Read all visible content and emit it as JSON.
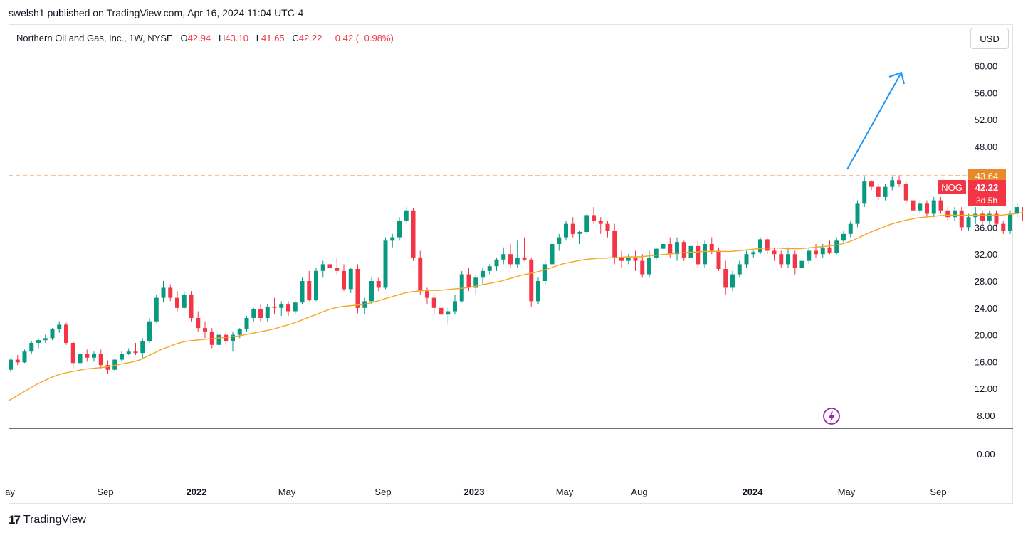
{
  "header": {
    "published": "swelsh1 published on TradingView.com, Apr 16, 2024 11:04 UTC-4"
  },
  "legend": {
    "symbol": "Northern Oil and Gas, Inc., 1W, NYSE",
    "o_label": "O",
    "o_value": "42.94",
    "h_label": "H",
    "h_value": "43.10",
    "l_label": "L",
    "l_value": "41.65",
    "c_label": "C",
    "c_value": "42.22",
    "change": "−0.42 (−0.98%)"
  },
  "currency_button": "USD",
  "price_axis": {
    "labels": [
      "60.00",
      "56.00",
      "52.00",
      "48.00",
      "36.00",
      "32.00",
      "28.00",
      "24.00",
      "20.00",
      "16.00",
      "12.00",
      "8.00",
      "0.00"
    ]
  },
  "resistance_badge": "43.64",
  "ticker_badge": {
    "symbol": "NOG",
    "price": "42.22",
    "countdown": "3d 5h"
  },
  "time_axis": [
    "ay",
    "Sep",
    "2022",
    "May",
    "Sep",
    "2023",
    "May",
    "Aug",
    "2024",
    "May",
    "Sep"
  ],
  "footer": {
    "brand": "TradingView",
    "logo": "17"
  },
  "colors": {
    "up": "#089981",
    "down": "#f23645",
    "ma": "#f5a623",
    "resistance": "#e8892a",
    "arrow": "#2196f3",
    "lightning": "#9c27b0"
  },
  "chart_data": {
    "type": "candlestick",
    "title": "Northern Oil and Gas, Inc., 1W, NYSE",
    "interval": "1W",
    "y_range": [
      8,
      60
    ],
    "resistance_level": 43.64,
    "last_price": 42.22,
    "series": [
      {
        "name": "NOG",
        "ohlc": [
          [
            14.8,
            16.5,
            14.5,
            16.3
          ],
          [
            16.3,
            17.0,
            15.5,
            15.9
          ],
          [
            15.9,
            17.8,
            15.8,
            17.5
          ],
          [
            17.5,
            19.0,
            17.2,
            18.8
          ],
          [
            18.8,
            19.5,
            18.0,
            19.2
          ],
          [
            19.2,
            20.0,
            18.8,
            19.5
          ],
          [
            19.5,
            21.0,
            19.2,
            20.8
          ],
          [
            20.8,
            22.0,
            20.3,
            21.5
          ],
          [
            21.5,
            21.8,
            18.5,
            18.8
          ],
          [
            18.8,
            19.0,
            15.0,
            15.8
          ],
          [
            15.8,
            17.5,
            15.5,
            17.2
          ],
          [
            17.2,
            17.8,
            16.0,
            16.6
          ],
          [
            16.6,
            17.5,
            16.0,
            17.1
          ],
          [
            17.1,
            17.8,
            15.0,
            15.5
          ],
          [
            15.5,
            16.2,
            14.2,
            14.8
          ],
          [
            14.8,
            16.5,
            14.6,
            16.3
          ],
          [
            16.3,
            17.5,
            16.0,
            17.2
          ],
          [
            17.2,
            18.0,
            17.0,
            17.5
          ],
          [
            17.5,
            18.8,
            17.0,
            17.3
          ],
          [
            17.3,
            19.5,
            16.5,
            19.0
          ],
          [
            19.0,
            22.5,
            18.8,
            22.0
          ],
          [
            22.0,
            26.0,
            21.8,
            25.5
          ],
          [
            25.5,
            28.0,
            24.8,
            27.0
          ],
          [
            27.0,
            27.5,
            25.0,
            25.5
          ],
          [
            25.5,
            26.5,
            23.5,
            24.0
          ],
          [
            24.0,
            26.5,
            23.8,
            26.0
          ],
          [
            26.0,
            26.5,
            22.0,
            22.5
          ],
          [
            22.5,
            23.5,
            20.5,
            21.0
          ],
          [
            21.0,
            22.0,
            19.5,
            20.5
          ],
          [
            20.5,
            21.0,
            18.0,
            18.5
          ],
          [
            18.5,
            20.5,
            18.0,
            20.0
          ],
          [
            20.0,
            20.5,
            18.5,
            19.0
          ],
          [
            19.0,
            20.5,
            17.5,
            20.0
          ],
          [
            20.0,
            21.0,
            19.5,
            20.8
          ],
          [
            20.8,
            22.8,
            20.5,
            22.5
          ],
          [
            22.5,
            24.0,
            22.0,
            23.8
          ],
          [
            23.8,
            24.5,
            22.0,
            22.5
          ],
          [
            22.5,
            24.5,
            22.0,
            24.2
          ],
          [
            24.2,
            25.5,
            23.0,
            24.0
          ],
          [
            24.0,
            25.0,
            22.8,
            24.5
          ],
          [
            24.5,
            25.0,
            22.8,
            23.5
          ],
          [
            23.5,
            25.0,
            23.0,
            24.8
          ],
          [
            24.8,
            28.5,
            24.5,
            28.0
          ],
          [
            28.0,
            29.5,
            25.0,
            25.2
          ],
          [
            25.2,
            30.0,
            25.0,
            29.5
          ],
          [
            29.5,
            31.0,
            28.5,
            30.5
          ],
          [
            30.5,
            31.5,
            29.0,
            30.0
          ],
          [
            30.0,
            31.5,
            29.0,
            29.5
          ],
          [
            29.5,
            30.5,
            26.5,
            26.8
          ],
          [
            26.8,
            30.0,
            26.2,
            29.8
          ],
          [
            29.8,
            30.5,
            23.2,
            24.0
          ],
          [
            24.0,
            25.5,
            23.0,
            25.0
          ],
          [
            25.0,
            28.5,
            24.5,
            28.0
          ],
          [
            28.0,
            28.5,
            26.5,
            27.0
          ],
          [
            27.0,
            34.5,
            26.8,
            34.0
          ],
          [
            34.0,
            35.0,
            33.0,
            34.5
          ],
          [
            34.5,
            37.5,
            34.0,
            37.0
          ],
          [
            37.0,
            39.0,
            36.5,
            38.5
          ],
          [
            38.5,
            38.8,
            31.0,
            31.5
          ],
          [
            31.5,
            32.5,
            26.0,
            26.5
          ],
          [
            26.5,
            27.0,
            24.5,
            25.5
          ],
          [
            25.5,
            26.0,
            23.0,
            24.0
          ],
          [
            24.0,
            25.0,
            21.5,
            23.0
          ],
          [
            23.0,
            24.0,
            21.5,
            23.5
          ],
          [
            23.5,
            26.0,
            23.0,
            25.0
          ],
          [
            25.0,
            29.5,
            24.8,
            29.0
          ],
          [
            29.0,
            30.0,
            26.5,
            27.0
          ],
          [
            27.0,
            29.0,
            26.0,
            28.5
          ],
          [
            28.5,
            30.0,
            27.5,
            29.5
          ],
          [
            29.5,
            30.5,
            29.0,
            30.2
          ],
          [
            30.2,
            31.5,
            29.5,
            31.2
          ],
          [
            31.2,
            33.0,
            30.5,
            32.0
          ],
          [
            32.0,
            33.5,
            30.0,
            30.5
          ],
          [
            30.5,
            34.0,
            30.0,
            31.5
          ],
          [
            31.5,
            34.5,
            31.0,
            31.2
          ],
          [
            31.2,
            31.5,
            24.2,
            25.0
          ],
          [
            25.0,
            28.5,
            24.5,
            28.0
          ],
          [
            28.0,
            31.0,
            27.5,
            30.5
          ],
          [
            30.5,
            34.0,
            30.0,
            33.5
          ],
          [
            33.5,
            35.0,
            32.5,
            34.5
          ],
          [
            34.5,
            37.0,
            34.0,
            36.5
          ],
          [
            36.5,
            37.5,
            34.5,
            35.0
          ],
          [
            35.0,
            35.5,
            33.5,
            35.3
          ],
          [
            35.3,
            38.0,
            35.0,
            37.8
          ],
          [
            37.8,
            39.0,
            36.5,
            37.0
          ],
          [
            37.0,
            37.5,
            35.0,
            36.5
          ],
          [
            36.5,
            37.0,
            34.5,
            35.5
          ],
          [
            35.5,
            36.5,
            30.5,
            31.5
          ],
          [
            31.5,
            32.5,
            30.0,
            31.0
          ],
          [
            31.0,
            32.0,
            30.5,
            31.5
          ],
          [
            31.5,
            32.5,
            29.5,
            31.0
          ],
          [
            31.0,
            32.0,
            28.5,
            29.0
          ],
          [
            29.0,
            32.5,
            28.5,
            31.5
          ],
          [
            31.5,
            33.0,
            31.0,
            32.8
          ],
          [
            32.8,
            34.0,
            31.5,
            33.5
          ],
          [
            33.5,
            34.5,
            31.5,
            32.0
          ],
          [
            32.0,
            34.5,
            31.0,
            33.8
          ],
          [
            33.8,
            34.0,
            31.0,
            31.5
          ],
          [
            31.5,
            33.5,
            31.0,
            33.2
          ],
          [
            33.2,
            34.0,
            30.0,
            30.5
          ],
          [
            30.5,
            34.0,
            30.0,
            33.5
          ],
          [
            33.5,
            34.5,
            32.0,
            32.5
          ],
          [
            32.5,
            33.0,
            29.5,
            29.8
          ],
          [
            29.8,
            31.0,
            26.0,
            27.0
          ],
          [
            27.0,
            29.5,
            26.5,
            29.0
          ],
          [
            29.0,
            31.0,
            28.5,
            30.5
          ],
          [
            30.5,
            32.5,
            30.0,
            32.0
          ],
          [
            32.0,
            32.5,
            31.5,
            32.3
          ],
          [
            32.3,
            34.5,
            32.0,
            34.2
          ],
          [
            34.2,
            34.5,
            32.0,
            32.5
          ],
          [
            32.5,
            33.0,
            31.0,
            32.0
          ],
          [
            32.0,
            32.5,
            30.0,
            30.5
          ],
          [
            30.5,
            33.0,
            30.0,
            32.0
          ],
          [
            32.0,
            32.5,
            29.0,
            30.0
          ],
          [
            30.0,
            31.5,
            29.5,
            31.0
          ],
          [
            31.0,
            33.0,
            30.5,
            32.5
          ],
          [
            32.5,
            33.5,
            31.5,
            32.0
          ],
          [
            32.0,
            33.5,
            31.5,
            33.0
          ],
          [
            33.0,
            34.0,
            32.0,
            32.2
          ],
          [
            32.2,
            34.5,
            32.0,
            34.0
          ],
          [
            34.0,
            35.5,
            33.5,
            35.0
          ],
          [
            35.0,
            37.0,
            34.5,
            36.5
          ],
          [
            36.5,
            40.0,
            36.0,
            39.5
          ],
          [
            39.5,
            43.5,
            39.0,
            42.8
          ],
          [
            42.8,
            43.0,
            41.5,
            42.0
          ],
          [
            42.0,
            42.5,
            40.0,
            40.5
          ],
          [
            40.5,
            42.5,
            40.0,
            42.0
          ],
          [
            42.0,
            43.5,
            41.5,
            43.0
          ],
          [
            43.0,
            43.7,
            42.0,
            42.5
          ],
          [
            42.5,
            42.8,
            39.5,
            40.0
          ],
          [
            40.0,
            40.5,
            38.0,
            38.5
          ],
          [
            38.5,
            40.0,
            38.0,
            39.5
          ],
          [
            39.5,
            40.0,
            37.5,
            38.0
          ],
          [
            38.0,
            40.5,
            37.5,
            40.0
          ],
          [
            40.0,
            40.5,
            38.0,
            38.5
          ],
          [
            38.5,
            39.0,
            37.0,
            37.5
          ],
          [
            37.5,
            39.0,
            37.0,
            38.5
          ],
          [
            38.5,
            39.0,
            35.5,
            36.0
          ],
          [
            36.0,
            38.0,
            35.5,
            37.5
          ],
          [
            37.5,
            39.0,
            36.5,
            38.0
          ],
          [
            38.0,
            38.5,
            36.5,
            37.0
          ],
          [
            37.0,
            38.5,
            36.5,
            38.0
          ],
          [
            38.0,
            38.5,
            36.0,
            36.5
          ],
          [
            36.5,
            37.0,
            35.0,
            35.5
          ],
          [
            35.5,
            38.5,
            35.0,
            38.0
          ],
          [
            38.0,
            39.5,
            37.5,
            39.0
          ],
          [
            39.0,
            40.0,
            36.5,
            37.0
          ],
          [
            37.0,
            37.5,
            35.0,
            35.5
          ],
          [
            35.5,
            36.0,
            33.5,
            34.0
          ],
          [
            34.0,
            35.5,
            33.0,
            35.2
          ],
          [
            35.2,
            35.5,
            32.0,
            32.5
          ],
          [
            32.5,
            33.0,
            31.0,
            32.0
          ],
          [
            32.0,
            34.0,
            31.5,
            33.5
          ],
          [
            33.5,
            34.5,
            33.0,
            34.2
          ],
          [
            34.2,
            36.0,
            34.0,
            35.8
          ],
          [
            35.8,
            37.5,
            35.5,
            37.2
          ],
          [
            37.2,
            37.5,
            35.5,
            36.0
          ],
          [
            36.0,
            38.5,
            35.8,
            38.2
          ],
          [
            38.2,
            39.5,
            38.0,
            39.2
          ],
          [
            39.2,
            40.5,
            38.5,
            40.2
          ],
          [
            40.2,
            42.5,
            40.0,
            42.2
          ],
          [
            42.2,
            43.5,
            42.0,
            43.2
          ],
          [
            42.94,
            43.1,
            41.65,
            42.22
          ]
        ]
      },
      {
        "name": "MA",
        "values": [
          10.2,
          10.8,
          11.4,
          12.0,
          12.6,
          13.1,
          13.6,
          14.0,
          14.3,
          14.5,
          14.7,
          14.9,
          15.0,
          15.1,
          15.2,
          15.4,
          15.6,
          15.8,
          16.0,
          16.3,
          16.8,
          17.3,
          17.8,
          18.2,
          18.6,
          18.9,
          19.1,
          19.2,
          19.3,
          19.4,
          19.5,
          19.6,
          19.7,
          19.8,
          20.0,
          20.2,
          20.4,
          20.6,
          20.8,
          21.1,
          21.4,
          21.7,
          22.1,
          22.5,
          22.9,
          23.3,
          23.7,
          24.0,
          24.2,
          24.3,
          24.4,
          24.5,
          24.7,
          25.0,
          25.3,
          25.6,
          25.9,
          26.2,
          26.4,
          26.5,
          26.6,
          26.6,
          26.6,
          26.7,
          26.8,
          26.9,
          27.0,
          27.2,
          27.4,
          27.6,
          27.8,
          28.0,
          28.3,
          28.6,
          28.9,
          29.1,
          29.3,
          29.6,
          29.9,
          30.3,
          30.6,
          30.8,
          31.0,
          31.2,
          31.3,
          31.4,
          31.4,
          31.5,
          31.5,
          31.6,
          31.6,
          31.6,
          31.7,
          31.8,
          31.9,
          32.0,
          32.1,
          32.2,
          32.3,
          32.3,
          32.4,
          32.4,
          32.4,
          32.4,
          32.4,
          32.5,
          32.6,
          32.7,
          32.8,
          32.9,
          32.9,
          32.9,
          32.8,
          32.8,
          32.8,
          32.9,
          33.0,
          33.1,
          33.2,
          33.3,
          33.5,
          33.8,
          34.2,
          34.7,
          35.2,
          35.6,
          36.0,
          36.4,
          36.7,
          37.0,
          37.2,
          37.4,
          37.5,
          37.6,
          37.7,
          37.8,
          37.8,
          37.8,
          37.8,
          37.8,
          37.8,
          37.8,
          37.8,
          37.8,
          37.9,
          38.0,
          38.2,
          38.4,
          38.5,
          38.5,
          38.5,
          38.4,
          38.3,
          38.2,
          38.0,
          37.9,
          37.8,
          37.7,
          37.7,
          37.6,
          37.6,
          37.7,
          37.8,
          37.9
        ]
      }
    ]
  }
}
